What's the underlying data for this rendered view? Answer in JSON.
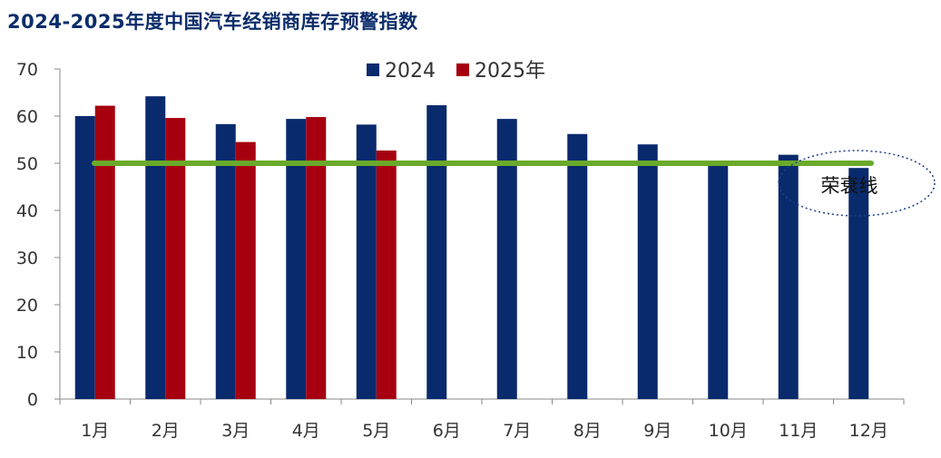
{
  "title": "2024-2025年度中国汽车经销商库存预警指数",
  "chart_data": {
    "type": "bar",
    "title": "2024-2025年度中国汽车经销商库存预警指数",
    "categories": [
      "1月",
      "2月",
      "3月",
      "4月",
      "5月",
      "6月",
      "7月",
      "8月",
      "9月",
      "10月",
      "11月",
      "12月"
    ],
    "series": [
      {
        "name": "2024",
        "color": "#0a2a6e",
        "values": [
          60.0,
          64.2,
          58.3,
          59.4,
          58.2,
          62.3,
          59.4,
          56.2,
          54.0,
          50.1,
          51.8,
          49.0
        ]
      },
      {
        "name": "2025年",
        "color": "#a60010",
        "values": [
          62.2,
          59.6,
          54.5,
          59.8,
          52.7,
          null,
          null,
          null,
          null,
          null,
          null,
          null
        ]
      }
    ],
    "reference_line": {
      "value": 50,
      "color": "#6aaa2a",
      "label": "荣衰线"
    },
    "ylim": [
      0,
      70
    ],
    "yticks": [
      0,
      10,
      20,
      30,
      40,
      50,
      60,
      70
    ],
    "legend_position": "top-center",
    "grid": false,
    "xlabel": "",
    "ylabel": ""
  }
}
